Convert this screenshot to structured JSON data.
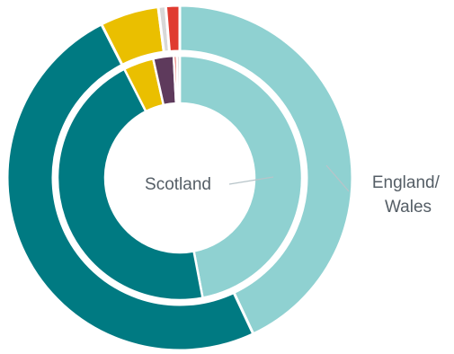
{
  "chart_data": {
    "type": "pie",
    "subtype": "nested-donut",
    "colors": {
      "light_teal": "#8fd1d1",
      "dark_teal": "#007a82",
      "yellow": "#eabf00",
      "purple": "#5e3a5c",
      "red": "#e03b30",
      "line_gray": "#b7c4c9"
    },
    "rings": [
      {
        "name": "England/Wales",
        "label_lines": [
          "England/",
          "Wales"
        ],
        "slices": [
          {
            "value": 43.0,
            "color": "#8fd1d1"
          },
          {
            "value": 49.5,
            "color": "#007a82"
          },
          {
            "value": 5.5,
            "color": "#eabf00"
          },
          {
            "value": 0.7,
            "color": "#d8d8d8"
          },
          {
            "value": 1.3,
            "color": "#e03b30"
          }
        ]
      },
      {
        "name": "Scotland",
        "label_lines": [
          "Scotland"
        ],
        "slices": [
          {
            "value": 47.0,
            "color": "#8fd1d1"
          },
          {
            "value": 45.5,
            "color": "#007a82"
          },
          {
            "value": 4.0,
            "color": "#eabf00"
          },
          {
            "value": 2.7,
            "color": "#5e3a5c"
          },
          {
            "value": 0.4,
            "color": "#e03b30"
          },
          {
            "value": 0.4,
            "color": "#d8d8d8"
          }
        ]
      }
    ]
  }
}
